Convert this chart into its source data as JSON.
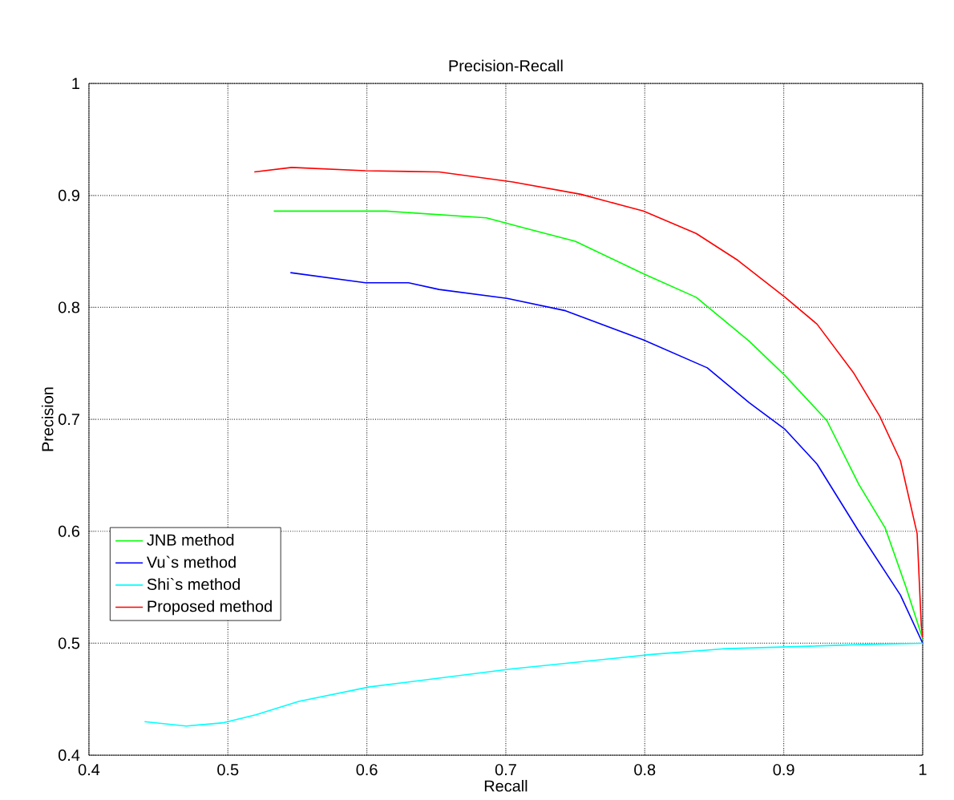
{
  "chart_data": {
    "type": "line",
    "title": "Precision-Recall",
    "xlabel": "Recall",
    "ylabel": "Precision",
    "xlim": [
      0.4,
      1
    ],
    "ylim": [
      0.4,
      1
    ],
    "xticks": [
      0.4,
      0.5,
      0.6,
      0.7,
      0.8,
      0.9,
      1
    ],
    "yticks": [
      0.4,
      0.5,
      0.6,
      0.7,
      0.8,
      0.9,
      1
    ],
    "grid": true,
    "legend": "bottom left",
    "line_style": "solid",
    "marker": "none",
    "series": [
      {
        "name": "JNB method",
        "color": "#00ff00",
        "x": [
          0.533,
          0.614,
          0.686,
          0.713,
          0.75,
          0.799,
          0.837,
          0.875,
          0.901,
          0.931,
          0.954,
          0.973,
          0.988,
          1.0
        ],
        "values": [
          0.886,
          0.886,
          0.88,
          0.871,
          0.859,
          0.83,
          0.809,
          0.77,
          0.739,
          0.699,
          0.642,
          0.603,
          0.55,
          0.504
        ]
      },
      {
        "name": "Vu`s method",
        "color": "#0000ff",
        "x": [
          0.545,
          0.599,
          0.63,
          0.652,
          0.701,
          0.743,
          0.799,
          0.845,
          0.875,
          0.901,
          0.924,
          0.954,
          0.984,
          1.0
        ],
        "values": [
          0.831,
          0.822,
          0.822,
          0.816,
          0.808,
          0.797,
          0.771,
          0.746,
          0.715,
          0.691,
          0.66,
          0.6,
          0.543,
          0.5
        ]
      },
      {
        "name": "Shi`s method",
        "color": "#00ffff",
        "x": [
          0.44,
          0.47,
          0.497,
          0.52,
          0.551,
          0.602,
          0.704,
          0.805,
          0.856,
          0.961,
          1.0
        ],
        "values": [
          0.43,
          0.426,
          0.429,
          0.436,
          0.448,
          0.461,
          0.477,
          0.49,
          0.495,
          0.499,
          0.5
        ]
      },
      {
        "name": "Proposed method",
        "color": "#ff0000",
        "x": [
          0.519,
          0.546,
          0.599,
          0.652,
          0.705,
          0.754,
          0.799,
          0.837,
          0.867,
          0.901,
          0.924,
          0.95,
          0.969,
          0.984,
          0.996,
          0.999,
          1.0
        ],
        "values": [
          0.921,
          0.925,
          0.922,
          0.921,
          0.912,
          0.901,
          0.886,
          0.866,
          0.842,
          0.809,
          0.785,
          0.742,
          0.703,
          0.663,
          0.598,
          0.516,
          0.505
        ]
      }
    ]
  }
}
